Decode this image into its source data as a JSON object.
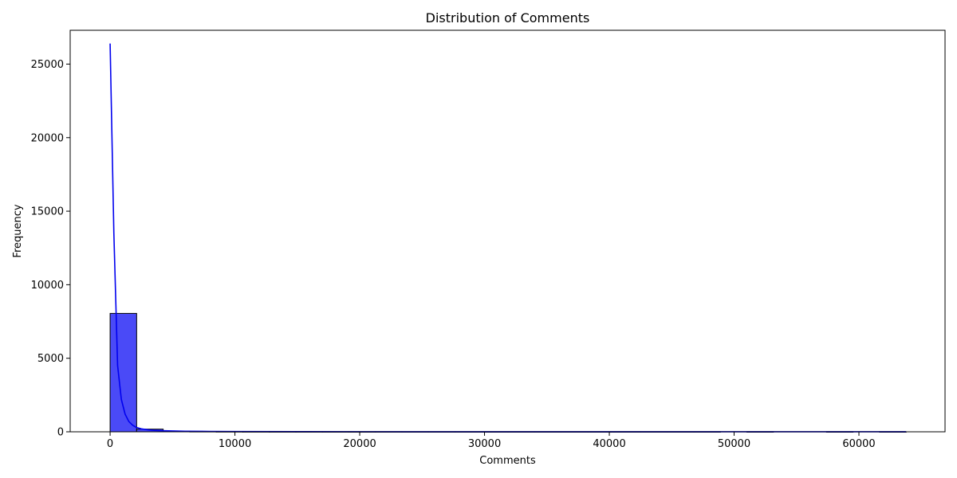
{
  "chart_data": {
    "type": "bar",
    "title": "Distribution of Comments",
    "xlabel": "Comments",
    "ylabel": "Frequency",
    "xlim": [
      -3200,
      66900
    ],
    "ylim": [
      0,
      27300
    ],
    "x_ticks": [
      0,
      10000,
      20000,
      30000,
      40000,
      50000,
      60000
    ],
    "x_tick_labels": [
      "0",
      "10000",
      "20000",
      "30000",
      "40000",
      "50000",
      "60000"
    ],
    "y_ticks": [
      0,
      5000,
      10000,
      15000,
      20000,
      25000
    ],
    "y_tick_labels": [
      "0",
      "5000",
      "10000",
      "15000",
      "20000",
      "25000"
    ],
    "bin_edges": [
      0,
      2126,
      4252,
      6378,
      8504,
      10630,
      12756,
      14882,
      17008,
      19134,
      21260,
      23386,
      25512,
      27638,
      29764,
      31890,
      34016,
      36142,
      38268,
      40394,
      42520,
      44646,
      46772,
      48898,
      51024,
      53150,
      55276,
      57402,
      59528,
      61654,
      63780
    ],
    "bin_counts": [
      8050,
      180,
      45,
      20,
      12,
      8,
      6,
      5,
      4,
      3,
      3,
      2,
      2,
      2,
      1,
      1,
      1,
      1,
      1,
      1,
      1,
      1,
      1,
      0,
      1,
      0,
      0,
      1,
      0,
      1
    ],
    "kde": {
      "x": [
        0,
        300,
        600,
        900,
        1200,
        1500,
        1800,
        2100,
        2500,
        3000,
        3500,
        4000,
        5000,
        6000,
        8000,
        10000,
        15000,
        20000,
        30000,
        40000,
        50000,
        60000,
        63780
      ],
      "y": [
        26400,
        13500,
        4500,
        2200,
        1200,
        700,
        450,
        300,
        200,
        140,
        100,
        80,
        55,
        40,
        25,
        18,
        10,
        7,
        4,
        3,
        2,
        2,
        2
      ]
    },
    "colors": {
      "bar_fill": "#4a4af7",
      "bar_edge": "#000000",
      "kde_line": "#0000ee"
    },
    "grid": false,
    "legend": "none"
  }
}
